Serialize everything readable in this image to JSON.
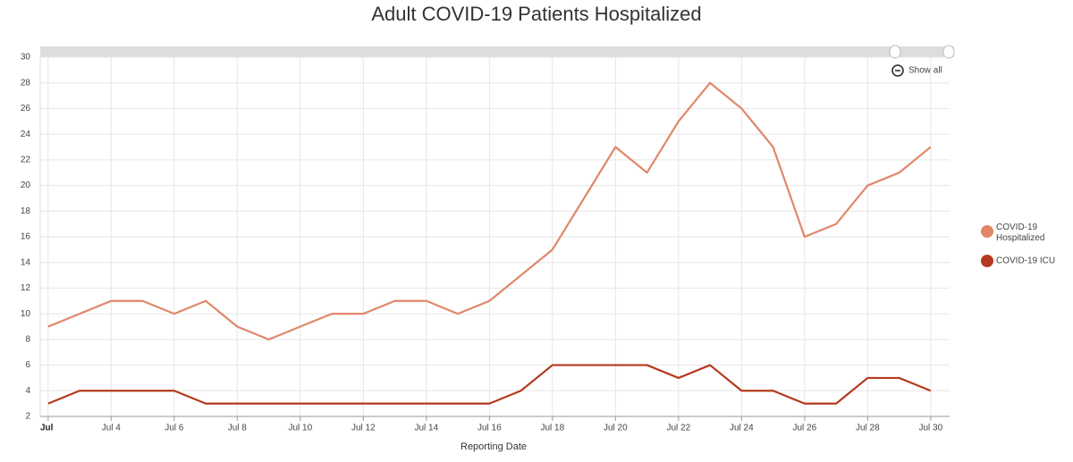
{
  "chart_data": {
    "type": "line",
    "title": "Adult COVID-19 Patients Hospitalized",
    "x_label": "Reporting Date",
    "zoom_button": "Show all",
    "x": [
      2,
      3,
      4,
      5,
      6,
      7,
      8,
      9,
      10,
      11,
      12,
      13,
      14,
      15,
      16,
      17,
      18,
      19,
      20,
      21,
      22,
      23,
      24,
      25,
      26,
      27,
      28,
      29,
      30
    ],
    "series": [
      {
        "name": "COVID-19 Hospitalized",
        "color": "#e0876a",
        "values": [
          9,
          10,
          11,
          11,
          10,
          11,
          9,
          8,
          9,
          10,
          10,
          11,
          11,
          10,
          11,
          13,
          15,
          19,
          23,
          21,
          25,
          28,
          26,
          23,
          16,
          17,
          20,
          21,
          23
        ]
      },
      {
        "name": "COVID-19 ICU",
        "color": "#b5391e",
        "values": [
          3,
          4,
          4,
          4,
          4,
          3,
          3,
          3,
          3,
          3,
          3,
          3,
          3,
          3,
          3,
          4,
          6,
          6,
          6,
          6,
          5,
          6,
          4,
          4,
          3,
          3,
          5,
          5,
          4
        ]
      }
    ],
    "xlim": [
      1.75,
      30.6
    ],
    "xticks": [
      {
        "value": 2,
        "label": "Jul"
      },
      {
        "value": 4,
        "label": "Jul 4"
      },
      {
        "value": 6,
        "label": "Jul 6"
      },
      {
        "value": 8,
        "label": "Jul 8"
      },
      {
        "value": 10,
        "label": "Jul 10"
      },
      {
        "value": 12,
        "label": "Jul 12"
      },
      {
        "value": 14,
        "label": "Jul 14"
      },
      {
        "value": 16,
        "label": "Jul 16"
      },
      {
        "value": 18,
        "label": "Jul 18"
      },
      {
        "value": 20,
        "label": "Jul 20"
      },
      {
        "value": 22,
        "label": "Jul 22"
      },
      {
        "value": 24,
        "label": "Jul 24"
      },
      {
        "value": 26,
        "label": "Jul 26"
      },
      {
        "value": 28,
        "label": "Jul 28"
      },
      {
        "value": 30,
        "label": "Jul 30"
      }
    ],
    "ylim": [
      2,
      30
    ],
    "yticks": [
      2,
      4,
      6,
      8,
      10,
      12,
      14,
      16,
      18,
      20,
      22,
      24,
      26,
      28,
      30
    ],
    "grid": true,
    "legend": "right"
  }
}
